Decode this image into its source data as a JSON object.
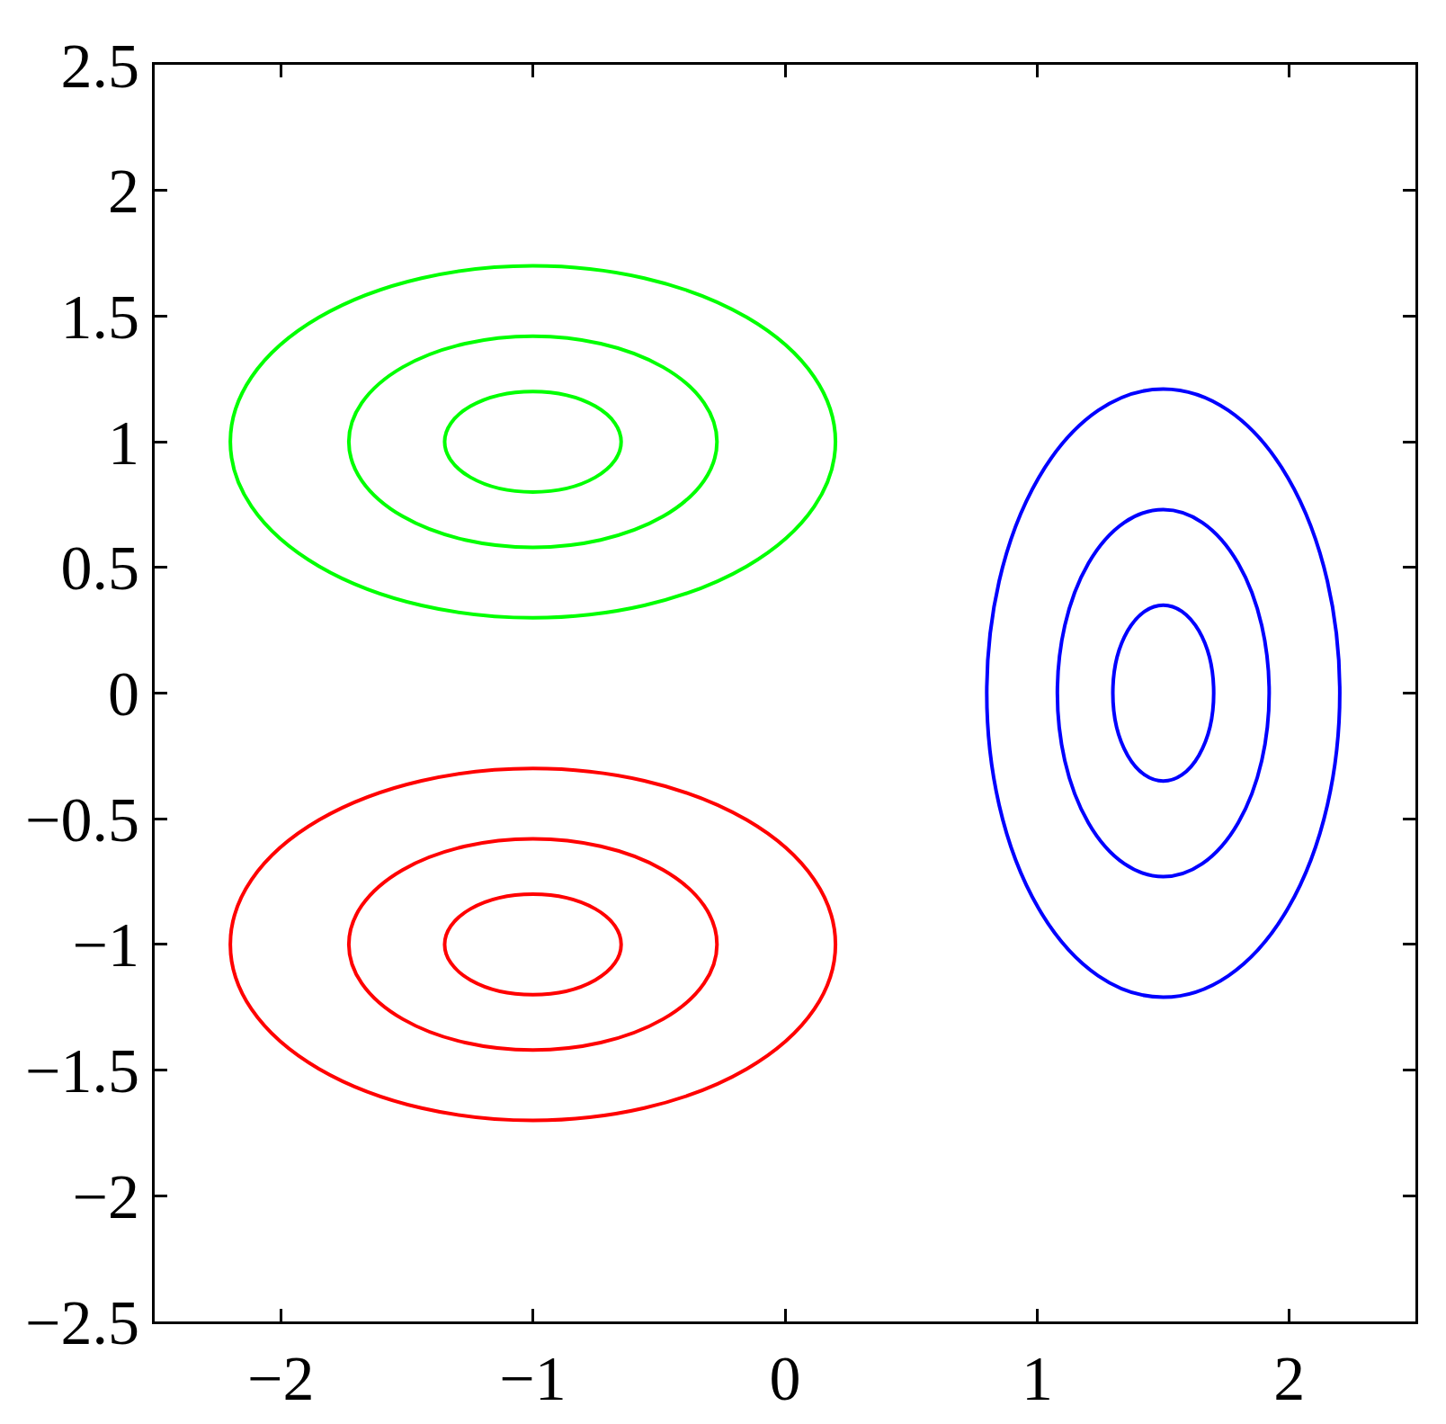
{
  "chart_data": {
    "type": "line",
    "xlim": [
      -2.5,
      2.5
    ],
    "xticks": [
      {
        "value": -2,
        "label": "−2"
      },
      {
        "value": -1,
        "label": "−1"
      },
      0,
      1,
      2
    ],
    "ylim": [
      -2.5,
      2.5
    ],
    "yticks": [
      {
        "value": -2.5,
        "label": "−2.5"
      },
      {
        "value": -2,
        "label": "−2"
      },
      {
        "value": -1.5,
        "label": "−1.5"
      },
      {
        "value": -1,
        "label": "−1"
      },
      {
        "value": -0.5,
        "label": "−0.5"
      },
      0,
      0.5,
      1,
      1.5,
      2,
      2.5
    ]
  }
}
